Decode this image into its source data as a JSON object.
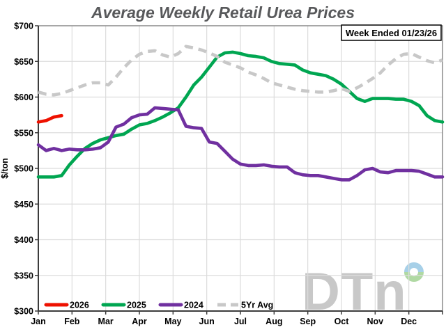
{
  "title": "Average Weekly Retail Urea Prices",
  "badge": "Week Ended 01/23/26",
  "ylabel": "$/ton",
  "watermark": {
    "text": "DTn",
    "ring_top_color": "#a7d0e8",
    "ring_bottom_color": "#b0d9a3",
    "letter_color": "#c8c8c8"
  },
  "colors": {
    "title_text": "#58595b",
    "axis_text": "#000000",
    "grid": "#dcdcdc",
    "plot_border": "#8a8a8a",
    "axis_line": "#3c3c3c",
    "badge_border": "#000000",
    "badge_bg": "#ffffff"
  },
  "chart_data": {
    "type": "line",
    "x_unit": "week",
    "weeks_per_year": 52,
    "xlabels": [
      "Jan",
      "Feb",
      "Mar",
      "Apr",
      "May",
      "Jun",
      "Jul",
      "Aug",
      "Sep",
      "Oct",
      "Nov",
      "Dec"
    ],
    "ylim": [
      300,
      700
    ],
    "yticks": [
      300,
      350,
      400,
      450,
      500,
      550,
      600,
      650,
      700
    ],
    "ytick_labels": [
      "$300",
      "$350",
      "$400",
      "$450",
      "$500",
      "$550",
      "$600",
      "$650",
      "$700"
    ],
    "grid": true,
    "legend_position": "bottom-left-inside",
    "series": [
      {
        "name": "2026",
        "color": "#ee1100",
        "style": "solid",
        "values": [
          565,
          567,
          572,
          574
        ]
      },
      {
        "name": "2025",
        "color": "#00a651",
        "style": "solid",
        "values": [
          488,
          488,
          488,
          490,
          505,
          517,
          528,
          535,
          540,
          543,
          546,
          548,
          555,
          561,
          563,
          567,
          572,
          578,
          585,
          600,
          617,
          628,
          642,
          656,
          662,
          663,
          661,
          658,
          657,
          655,
          650,
          647,
          646,
          645,
          638,
          634,
          632,
          630,
          625,
          618,
          608,
          598,
          594,
          598,
          598,
          598,
          597,
          597,
          594,
          588,
          574,
          567,
          565
        ]
      },
      {
        "name": "2024",
        "color": "#7030a0",
        "style": "solid",
        "values": [
          533,
          525,
          528,
          525,
          527,
          526,
          526,
          527,
          529,
          537,
          558,
          562,
          571,
          575,
          576,
          585,
          584,
          583,
          582,
          559,
          557,
          556,
          537,
          535,
          524,
          513,
          506,
          504,
          504,
          505,
          503,
          502,
          502,
          494,
          491,
          490,
          490,
          488,
          486,
          484,
          484,
          490,
          498,
          500,
          495,
          494,
          497,
          497,
          497,
          496,
          492,
          488,
          488
        ]
      },
      {
        "name": "5Yr Avg",
        "color": "#c8c8c8",
        "style": "dashed",
        "values": [
          607,
          604,
          603,
          605,
          609,
          613,
          617,
          620,
          620,
          617,
          628,
          641,
          652,
          660,
          664,
          665,
          659,
          656,
          661,
          671,
          669,
          666,
          662,
          657,
          649,
          645,
          641,
          635,
          631,
          626,
          620,
          617,
          614,
          611,
          609,
          608,
          607,
          607,
          609,
          612,
          608,
          613,
          619,
          626,
          634,
          645,
          654,
          660,
          661,
          656,
          651,
          648,
          652
        ]
      }
    ]
  }
}
